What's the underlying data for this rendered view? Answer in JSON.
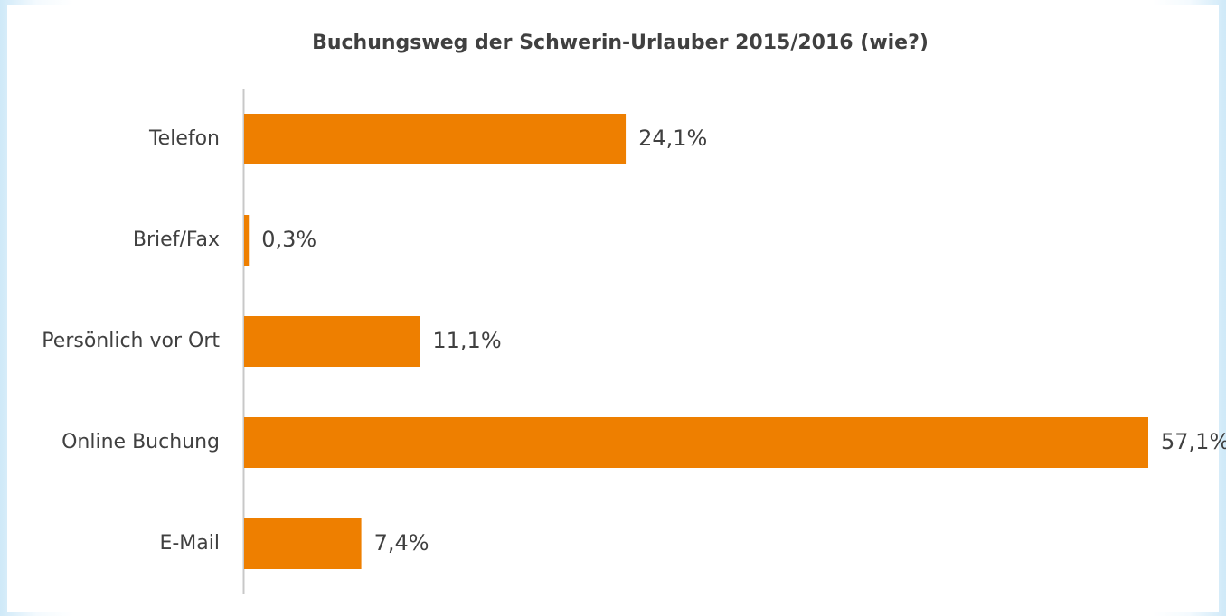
{
  "chart_data": {
    "type": "bar",
    "orientation": "horizontal",
    "title": "Buchungsweg der Schwerin-Urlauber 2015/2016 (wie?)",
    "categories": [
      "Telefon",
      "Brief/Fax",
      "Persönlich vor Ort",
      "Online Buchung",
      "E-Mail"
    ],
    "values": [
      24.1,
      0.3,
      11.1,
      57.1,
      7.4
    ],
    "value_labels": [
      "24,1%",
      "0,3%",
      "11,1%",
      "57,1%",
      "7,4%"
    ],
    "color": "#ee7f00"
  }
}
